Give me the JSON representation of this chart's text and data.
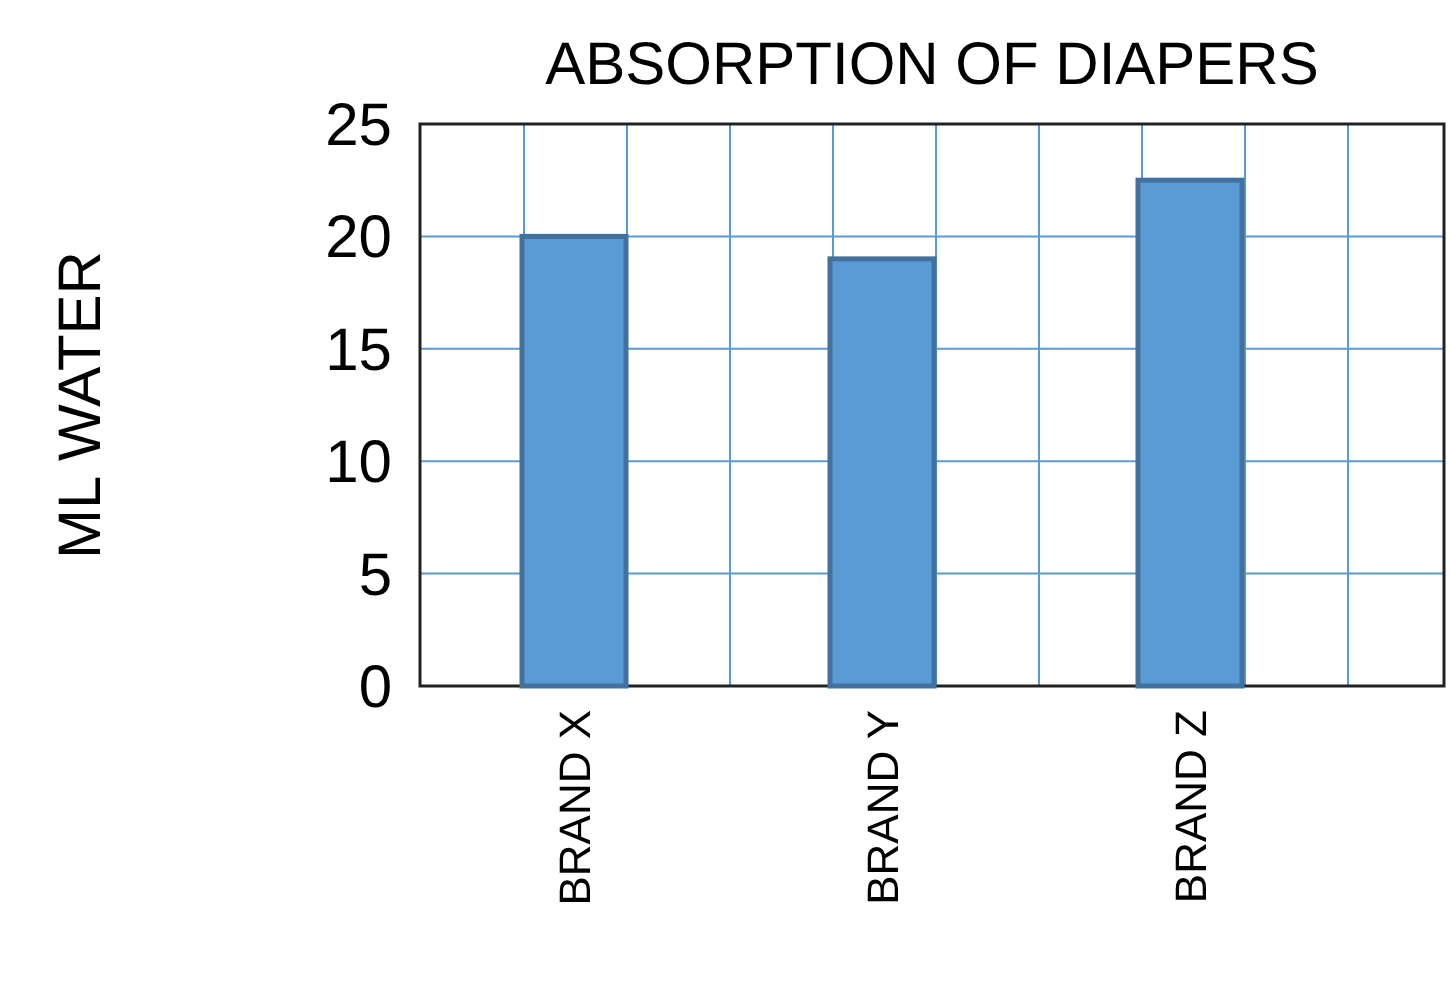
{
  "chart_data": {
    "type": "bar",
    "title": "ABSORPTION OF DIAPERS",
    "ylabel": "ML WATER",
    "categories": [
      "BRAND X",
      "BRAND Y",
      "BRAND Z"
    ],
    "values": [
      20,
      19,
      22.5
    ],
    "color": "#5b9bd5",
    "ylim": [
      0,
      25
    ],
    "yticks": [
      0,
      5,
      10,
      15,
      20,
      25
    ],
    "grid": true
  }
}
